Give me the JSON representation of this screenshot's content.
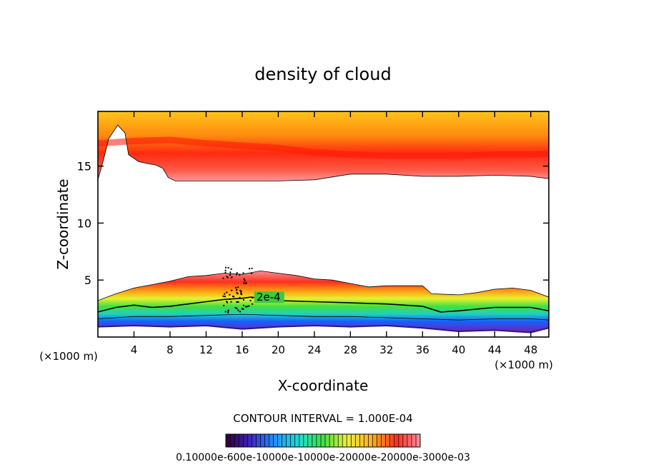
{
  "chart_data": {
    "type": "filled-contour",
    "title": "density of cloud",
    "xlabel": "X-coordinate",
    "ylabel": "Z-coordinate",
    "x_unit_left": "(×1000 m)",
    "x_unit_right": "(×1000 m)",
    "xlim": [
      0,
      50
    ],
    "ylim": [
      0,
      19.8
    ],
    "x_ticks": [
      4,
      8,
      12,
      16,
      20,
      24,
      28,
      32,
      36,
      40,
      44,
      48
    ],
    "x_tick_labels": [
      "4",
      "8",
      "12",
      "16",
      "20",
      "24",
      "28",
      "32",
      "36",
      "40",
      "44",
      "48"
    ],
    "y_ticks": [
      5,
      10,
      15
    ],
    "y_tick_labels": [
      "5",
      "10",
      "15"
    ],
    "contour_interval_text": "CONTOUR INTERVAL = 1.000E-04",
    "contour_label": "2e-4",
    "contour_label_at": [
      17.5,
      3.5
    ],
    "colorbar_labels_text": "0.10000e-600e-10000e-10000e-20000e-20000e-3000e-03",
    "colors": {
      "upper_core": "#ff2a10",
      "upper_top": "#ffcc18",
      "upper_edge": "#ff8080",
      "lower_base": "#6a2ab8",
      "contour_line": "#000000"
    },
    "upper_layer": {
      "top_z": 19.8,
      "bottom_profile": [
        [
          0,
          13.8
        ],
        [
          0.6,
          15.5
        ],
        [
          1.2,
          17.4
        ],
        [
          2.2,
          18.6
        ],
        [
          3.0,
          17.9
        ],
        [
          3.4,
          16.0
        ],
        [
          4.5,
          15.4
        ],
        [
          5.6,
          15.2
        ],
        [
          6.4,
          15.1
        ],
        [
          7.2,
          14.8
        ],
        [
          7.8,
          14.0
        ],
        [
          8.6,
          13.7
        ],
        [
          12,
          13.7
        ],
        [
          20,
          13.7
        ],
        [
          24,
          13.8
        ],
        [
          28,
          14.3
        ],
        [
          32,
          14.3
        ],
        [
          36,
          14.1
        ],
        [
          40,
          14.1
        ],
        [
          44,
          14.2
        ],
        [
          48,
          14.1
        ],
        [
          50,
          13.9
        ]
      ],
      "core_profile": [
        [
          0,
          17.0
        ],
        [
          4,
          17.2
        ],
        [
          8,
          17.3
        ],
        [
          12,
          17.0
        ],
        [
          16,
          16.8
        ],
        [
          20,
          16.6
        ],
        [
          24,
          16.2
        ],
        [
          28,
          16.0
        ],
        [
          32,
          15.9
        ],
        [
          36,
          15.9
        ],
        [
          40,
          15.9
        ],
        [
          44,
          16.0
        ],
        [
          48,
          16.0
        ],
        [
          50,
          16.1
        ]
      ]
    },
    "lower_layer": {
      "top_profile": [
        [
          0,
          3.2
        ],
        [
          2,
          3.8
        ],
        [
          4,
          4.3
        ],
        [
          6,
          4.6
        ],
        [
          8,
          4.9
        ],
        [
          10,
          5.3
        ],
        [
          12,
          5.4
        ],
        [
          14,
          5.6
        ],
        [
          16,
          5.5
        ],
        [
          18,
          5.8
        ],
        [
          20,
          5.6
        ],
        [
          22,
          5.4
        ],
        [
          24,
          5.1
        ],
        [
          26,
          5.0
        ],
        [
          28,
          4.7
        ],
        [
          30,
          4.4
        ],
        [
          32,
          4.5
        ],
        [
          34,
          4.5
        ],
        [
          36,
          4.5
        ],
        [
          37,
          3.8
        ],
        [
          40,
          3.7
        ],
        [
          42,
          3.9
        ],
        [
          44,
          4.2
        ],
        [
          46,
          4.3
        ],
        [
          48,
          4.1
        ],
        [
          50,
          3.5
        ]
      ],
      "contour_2e4": [
        [
          0,
          2.2
        ],
        [
          2,
          2.6
        ],
        [
          4,
          2.8
        ],
        [
          6,
          2.6
        ],
        [
          8,
          2.7
        ],
        [
          10,
          2.9
        ],
        [
          12,
          3.1
        ],
        [
          14,
          3.3
        ],
        [
          16,
          3.4
        ],
        [
          17,
          3.5
        ],
        [
          20,
          3.2
        ],
        [
          24,
          3.1
        ],
        [
          28,
          3.0
        ],
        [
          32,
          2.9
        ],
        [
          36,
          2.7
        ],
        [
          38,
          2.2
        ],
        [
          40,
          2.3
        ],
        [
          44,
          2.6
        ],
        [
          48,
          2.6
        ],
        [
          50,
          2.3
        ]
      ],
      "contour_lower": [
        [
          0,
          1.6
        ],
        [
          4,
          1.8
        ],
        [
          8,
          1.8
        ],
        [
          12,
          1.9
        ],
        [
          16,
          2.0
        ],
        [
          20,
          1.9
        ],
        [
          24,
          1.8
        ],
        [
          28,
          1.8
        ],
        [
          32,
          1.7
        ],
        [
          36,
          1.6
        ],
        [
          40,
          1.5
        ],
        [
          44,
          1.6
        ],
        [
          48,
          1.6
        ],
        [
          50,
          1.5
        ]
      ],
      "base_profile": [
        [
          0,
          0.9
        ],
        [
          4,
          1.0
        ],
        [
          8,
          0.9
        ],
        [
          12,
          1.0
        ],
        [
          16,
          0.7
        ],
        [
          20,
          0.9
        ],
        [
          24,
          1.0
        ],
        [
          28,
          0.9
        ],
        [
          32,
          1.0
        ],
        [
          36,
          0.8
        ],
        [
          40,
          0.5
        ],
        [
          44,
          0.6
        ],
        [
          48,
          0.4
        ],
        [
          50,
          0.8
        ]
      ]
    }
  }
}
